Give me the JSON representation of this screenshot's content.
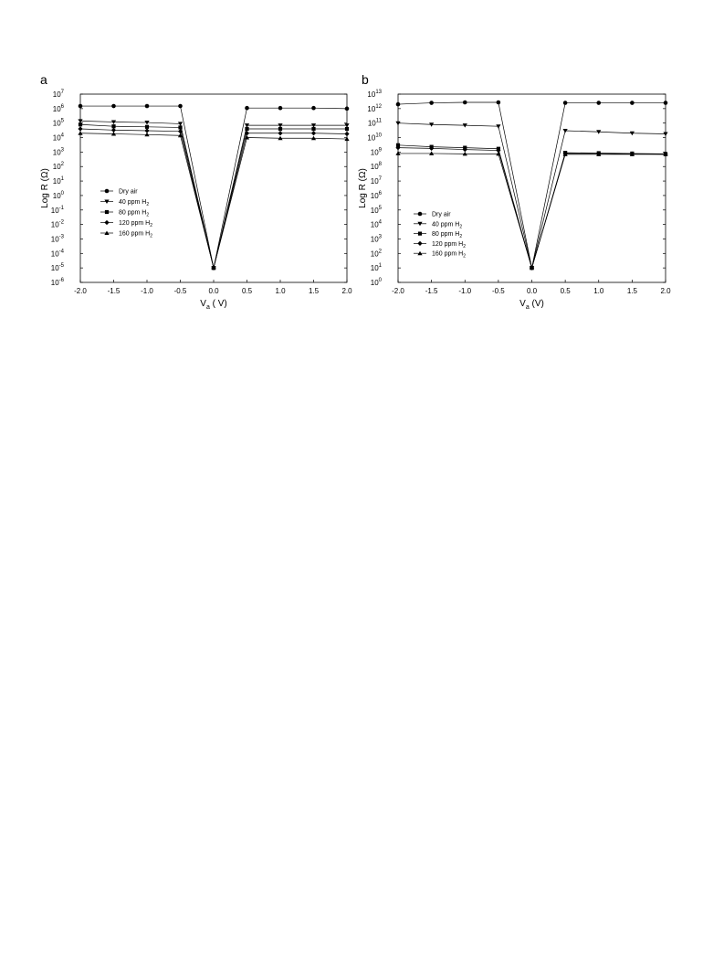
{
  "chart_data": [
    {
      "type": "line",
      "panel_label": "a",
      "xlabel": "V",
      "xlabel_sub": "a",
      "xlabel_unit": " ( V)",
      "ylabel": "Log R (Ω)",
      "yscale": "log",
      "xlim": [
        -2.0,
        2.0
      ],
      "ylim_exp": [
        -6,
        7
      ],
      "x_ticks": [
        "-2.0",
        "-1.5",
        "-1.0",
        "-0.5",
        "0.0",
        "0.5",
        "1.0",
        "1.5",
        "2.0"
      ],
      "legend_position": "left-middle",
      "x": [
        -2.0,
        -1.5,
        -1.0,
        -0.5,
        0.0,
        0.5,
        1.0,
        1.5,
        2.0
      ],
      "series": [
        {
          "name": "Dry air",
          "gas": "",
          "marker": "circle",
          "values": [
            1500000.0,
            1500000.0,
            1500000.0,
            1500000.0,
            1e-05,
            1100000.0,
            1100000.0,
            1100000.0,
            1000000.0
          ]
        },
        {
          "name": "40 ppm H",
          "gas": "2",
          "marker": "triangle-down",
          "values": [
            140000.0,
            120000.0,
            110000.0,
            90000.0,
            1e-05,
            70000.0,
            70000.0,
            70000.0,
            70000.0
          ]
        },
        {
          "name": "80 ppm H",
          "gas": "2",
          "marker": "square",
          "values": [
            80000.0,
            60000.0,
            55000.0,
            50000.0,
            1e-05,
            40000.0,
            40000.0,
            40000.0,
            40000.0
          ]
        },
        {
          "name": "120 ppm H",
          "gas": "2",
          "marker": "diamond",
          "values": [
            40000.0,
            33000.0,
            30000.0,
            27000.0,
            1e-05,
            20000.0,
            20000.0,
            20000.0,
            18000.0
          ]
        },
        {
          "name": "160 ppm H",
          "gas": "2",
          "marker": "triangle-up",
          "values": [
            20000.0,
            18000.0,
            16000.0,
            14000.0,
            1e-05,
            10000.0,
            9000.0,
            9000.0,
            8000.0
          ]
        }
      ]
    },
    {
      "type": "line",
      "panel_label": "b",
      "xlabel": "V",
      "xlabel_sub": "a",
      "xlabel_unit": " (V)",
      "ylabel": "Log R (Ω)",
      "yscale": "log",
      "xlim": [
        -2.0,
        2.0
      ],
      "ylim_exp": [
        0,
        13
      ],
      "x_ticks": [
        "-2.0",
        "-1.5",
        "-1.0",
        "-0.5",
        "0.0",
        "0.5",
        "1.0",
        "1.5",
        "2.0"
      ],
      "legend_position": "left-middle",
      "x": [
        -2.0,
        -1.5,
        -1.0,
        -0.5,
        0.0,
        0.5,
        1.0,
        1.5,
        2.0
      ],
      "series": [
        {
          "name": "Dry air",
          "gas": "",
          "marker": "circle",
          "values": [
            2000000000000.0,
            2500000000000.0,
            2700000000000.0,
            2700000000000.0,
            10,
            2500000000000.0,
            2500000000000.0,
            2500000000000.0,
            2500000000000.0
          ]
        },
        {
          "name": "40 ppm H",
          "gas": "2",
          "marker": "triangle-down",
          "values": [
            100000000000.0,
            80000000000.0,
            70000000000.0,
            60000000000.0,
            10,
            30000000000.0,
            25000000000.0,
            20000000000.0,
            18000000000.0
          ]
        },
        {
          "name": "80 ppm H",
          "gas": "2",
          "marker": "square",
          "values": [
            3000000000.0,
            2300000000.0,
            2000000000.0,
            1700000000.0,
            10,
            900000000.0,
            850000000.0,
            800000000.0,
            750000000.0
          ]
        },
        {
          "name": "120 ppm H",
          "gas": "2",
          "marker": "diamond",
          "values": [
            2000000000.0,
            1800000000.0,
            1500000000.0,
            1300000000.0,
            10,
            800000000.0,
            800000000.0,
            750000000.0,
            700000000.0
          ]
        },
        {
          "name": "160 ppm H",
          "gas": "2",
          "marker": "triangle-up",
          "values": [
            800000000.0,
            800000000.0,
            750000000.0,
            750000000.0,
            10,
            700000000.0,
            700000000.0,
            700000000.0,
            700000000.0
          ]
        }
      ]
    }
  ]
}
